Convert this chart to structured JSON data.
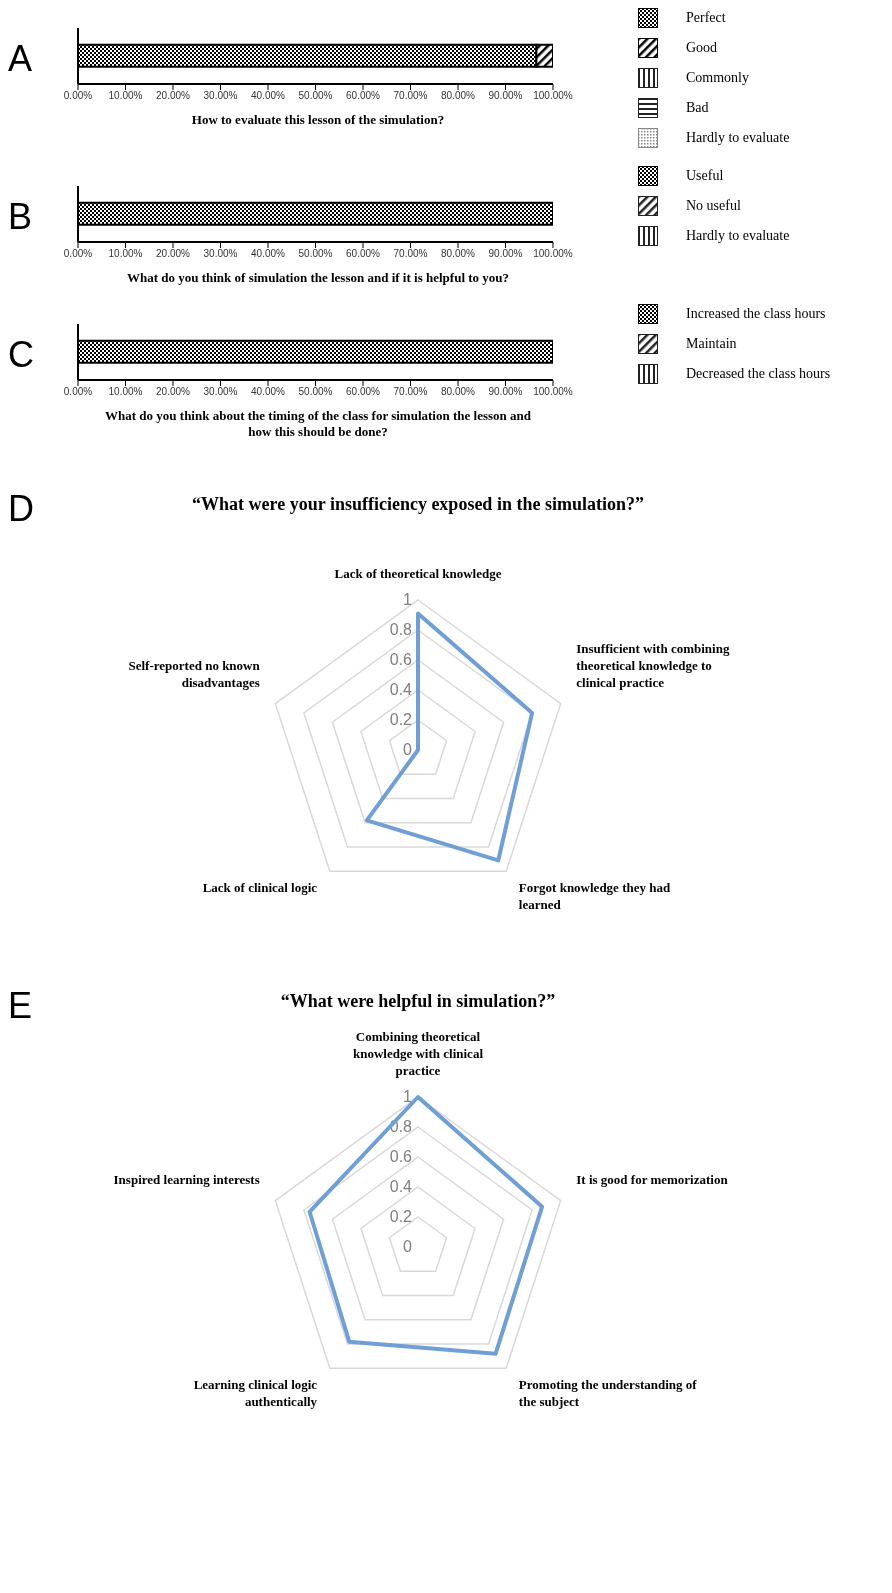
{
  "chart_data": [
    {
      "type": "bar",
      "orientation": "horizontal",
      "stacked": true,
      "annotations": [
        "A"
      ],
      "xlabel": "How to evaluate this lesson of the simulation?",
      "categories": [
        null
      ],
      "xlim": [
        0,
        100
      ],
      "xticks": [
        {
          "value": 0,
          "label": "0.00%"
        },
        {
          "value": 10,
          "label": "10.00%"
        },
        {
          "value": 20,
          "label": "20.00%"
        },
        {
          "value": 30,
          "label": "30.00%"
        },
        {
          "value": 40,
          "label": "40.00%"
        },
        {
          "value": 50,
          "label": "50.00%"
        },
        {
          "value": 60,
          "label": "60.00%"
        },
        {
          "value": 70,
          "label": "70.00%"
        },
        {
          "value": 80,
          "label": "80.00%"
        },
        {
          "value": 90,
          "label": "90.00%"
        },
        {
          "value": 100,
          "label": "100.00%"
        }
      ],
      "tick_labels": "x",
      "legend": "right",
      "series": [
        {
          "name": "Perfect",
          "color": "#000000",
          "values": [
            96.5
          ]
        },
        {
          "name": "Good",
          "color": "#000000",
          "values": [
            3.5
          ]
        },
        {
          "name": "Commonly",
          "color": "#222222",
          "values": [
            0
          ]
        },
        {
          "name": "Bad",
          "color": "#222222",
          "values": [
            0
          ]
        },
        {
          "name": "Hardly to evaluate",
          "color": "#888888",
          "values": [
            0
          ]
        }
      ]
    },
    {
      "type": "bar",
      "orientation": "horizontal",
      "stacked": true,
      "annotations": [
        "B"
      ],
      "xlabel": "What do you think of simulation the lesson and if it is helpful to you?",
      "categories": [
        null
      ],
      "xlim": [
        0,
        100
      ],
      "xticks": [
        {
          "value": 0,
          "label": "0.00%"
        },
        {
          "value": 10,
          "label": "10.00%"
        },
        {
          "value": 20,
          "label": "20.00%"
        },
        {
          "value": 30,
          "label": "30.00%"
        },
        {
          "value": 40,
          "label": "40.00%"
        },
        {
          "value": 50,
          "label": "50.00%"
        },
        {
          "value": 60,
          "label": "60.00%"
        },
        {
          "value": 70,
          "label": "70.00%"
        },
        {
          "value": 80,
          "label": "80.00%"
        },
        {
          "value": 90,
          "label": "90.00%"
        },
        {
          "value": 100,
          "label": "100.00%"
        }
      ],
      "tick_labels": "x",
      "legend": "right",
      "series": [
        {
          "name": "Useful",
          "color": "#000000",
          "values": [
            100
          ]
        },
        {
          "name": "No useful",
          "color": "#222222",
          "values": [
            0
          ]
        },
        {
          "name": "Hardly to evaluate",
          "color": "#222222",
          "values": [
            0
          ]
        }
      ]
    },
    {
      "type": "bar",
      "orientation": "horizontal",
      "stacked": true,
      "annotations": [
        "C"
      ],
      "xlabel": "What do you think about the timing of the class for simulation the lesson and how this should be done?",
      "categories": [
        null
      ],
      "xlim": [
        0,
        100
      ],
      "xticks": [
        {
          "value": 0,
          "label": "0.00%"
        },
        {
          "value": 10,
          "label": "10.00%"
        },
        {
          "value": 20,
          "label": "20.00%"
        },
        {
          "value": 30,
          "label": "30.00%"
        },
        {
          "value": 40,
          "label": "40.00%"
        },
        {
          "value": 50,
          "label": "50.00%"
        },
        {
          "value": 60,
          "label": "60.00%"
        },
        {
          "value": 70,
          "label": "70.00%"
        },
        {
          "value": 80,
          "label": "80.00%"
        },
        {
          "value": 90,
          "label": "90.00%"
        },
        {
          "value": 100,
          "label": "100.00%"
        }
      ],
      "tick_labels": "x",
      "legend": "right",
      "series": [
        {
          "name": "Increased the class hours",
          "color": "#000000",
          "values": [
            100
          ]
        },
        {
          "name": "Maintain",
          "color": "#222222",
          "values": [
            0
          ]
        },
        {
          "name": "Decreased the class hours",
          "color": "#222222",
          "values": [
            0
          ]
        }
      ]
    },
    {
      "type": "radar",
      "annotations": [
        "D"
      ],
      "title": "“What were your insufficiency exposed in the simulation?”",
      "categories": [
        "Lack of theoretical knowledge",
        "Insufficient with combining theoretical knowledge to clinical practice",
        "Forgot knowledge they had learned",
        "Lack of clinical logic",
        "Self-reported no known disadvantages"
      ],
      "ylim": [
        0,
        1
      ],
      "yticks": [
        0,
        0.2,
        0.4,
        0.6,
        0.8,
        1
      ],
      "grid": true,
      "series": [
        {
          "color": "#6f9fd5",
          "values": [
            0.91,
            0.8,
            0.91,
            0.58,
            0
          ]
        }
      ]
    },
    {
      "type": "radar",
      "annotations": [
        "E"
      ],
      "title": "“What were helpful in simulation?”",
      "categories": [
        "Combining theoretical knowledge with clinical practice",
        "It is good for memorization",
        "Promoting the understanding of the subject",
        "Learning clinical logic authentically",
        "Inspired learning interests"
      ],
      "ylim": [
        0,
        1
      ],
      "yticks": [
        0,
        0.2,
        0.4,
        0.6,
        0.8,
        1
      ],
      "grid": true,
      "series": [
        {
          "color": "#6f9fd5",
          "values": [
            1,
            0.87,
            0.88,
            0.78,
            0.76
          ]
        }
      ]
    }
  ]
}
